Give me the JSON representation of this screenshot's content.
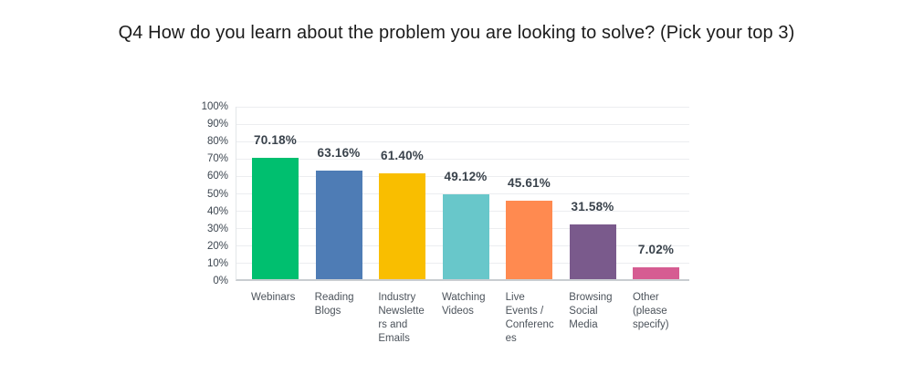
{
  "title": "Q4 How do you learn about the problem you are looking to solve? (Pick your top 3)",
  "chart_data": {
    "type": "bar",
    "title": "Q4 How do you learn about the problem you are looking to solve? (Pick your top 3)",
    "categories": [
      "Webinars",
      "Reading Blogs",
      "Industry Newsletters and Emails",
      "Watching Videos",
      "Live Events / Conferences",
      "Browsing Social Media",
      "Other (please specify)"
    ],
    "category_display_lines": [
      "Webinars",
      "Reading\nBlogs",
      "Industry\nNewslette\nrs and\nEmails",
      "Watching\nVideos",
      "Live\nEvents /\nConferenc\nes",
      "Browsing\nSocial\nMedia",
      "Other\n(please\nspecify)"
    ],
    "values": [
      70.18,
      63.16,
      61.4,
      49.12,
      45.61,
      31.58,
      7.02
    ],
    "value_labels": [
      "70.18%",
      "63.16%",
      "61.40%",
      "49.12%",
      "45.61%",
      "31.58%",
      "7.02%"
    ],
    "bar_colors": [
      "#00BF6F",
      "#4E7CB5",
      "#F9BE00",
      "#68C7CA",
      "#FF8A50",
      "#7A5A8C",
      "#D65C92"
    ],
    "xlabel": "",
    "ylabel": "",
    "ylim": [
      0,
      100
    ],
    "y_ticks_percent": [
      0,
      10,
      20,
      30,
      40,
      50,
      60,
      70,
      80,
      90,
      100
    ],
    "y_tick_labels": [
      "0%",
      "10%",
      "20%",
      "30%",
      "40%",
      "50%",
      "60%",
      "70%",
      "80%",
      "90%",
      "100%"
    ],
    "grid": true,
    "legend": "none",
    "style_colors": {
      "background": "#FFFFFF",
      "gridline": "#ECEDF0",
      "axis_line": "#C9CDD1",
      "plot_left_border": "#E3E6E9",
      "title_text": "#1B1B1B",
      "y_tick_text": "#3D4650",
      "data_label_text": "#39424B",
      "category_text": "#4C535B"
    }
  }
}
